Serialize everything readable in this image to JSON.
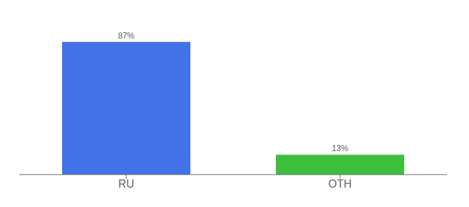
{
  "chart_data": {
    "type": "bar",
    "categories": [
      "RU",
      "OTH"
    ],
    "values": [
      87,
      13
    ],
    "value_labels": [
      "87%",
      "13%"
    ],
    "data_labels": true,
    "colors": [
      "#4472e8",
      "#3dbf3d"
    ],
    "ylim": [
      0,
      100
    ],
    "tick_labels": "x",
    "grid": false
  }
}
